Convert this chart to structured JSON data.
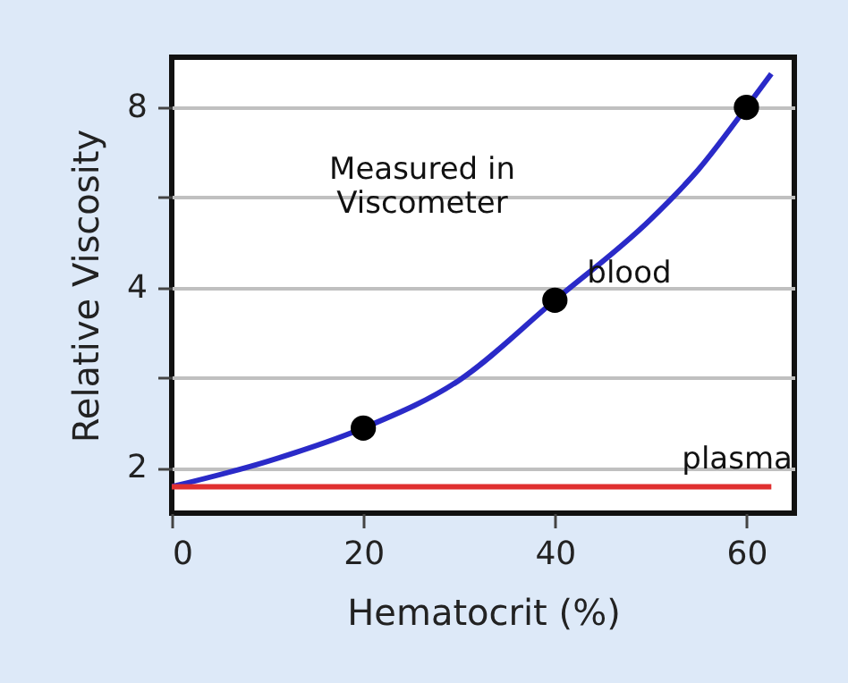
{
  "chart_data": {
    "type": "line",
    "xlabel": "Hematocrit (%)",
    "ylabel": "Relative Viscosity",
    "xlim": [
      0,
      65
    ],
    "xticks": [
      0,
      20,
      40,
      60
    ],
    "ylim": [
      1.68,
      9.7
    ],
    "yticks": [
      2,
      {
        "value": 2.83,
        "label": null
      },
      4,
      {
        "value": 5.66,
        "label": null
      },
      8
    ],
    "log": "y",
    "grid": "y",
    "annotations": [
      "Measured in\nViscometer"
    ],
    "series": [
      {
        "name": "blood",
        "color": "#2a2ac8",
        "line_style": "solid",
        "x": [
          0,
          10,
          20,
          30,
          40,
          50,
          55,
          60,
          62.6
        ],
        "values": [
          1.86,
          2.05,
          2.33,
          2.8,
          3.81,
          5.2,
          6.3,
          8.0,
          9.1
        ]
      },
      {
        "type": "scatter",
        "color": "#000000",
        "marker": "circle",
        "x": [
          20,
          40,
          60
        ],
        "values": [
          2.33,
          3.81,
          8.0
        ]
      },
      {
        "name": "plasma",
        "color": "#e03030",
        "line_style": "solid",
        "x": [
          0,
          62.6
        ],
        "values": [
          1.86,
          1.86
        ]
      }
    ]
  }
}
